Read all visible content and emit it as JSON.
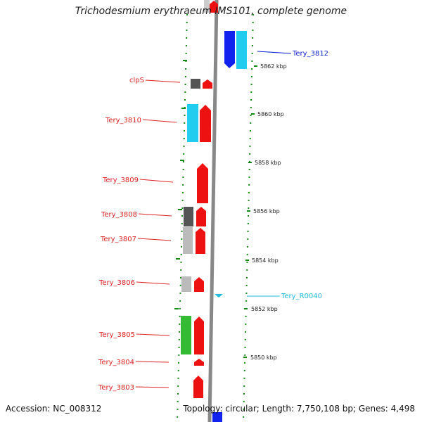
{
  "title": "Trichodesmium erythraeum IMS101, complete genome",
  "footer": {
    "accession": "Accession: NC_008312",
    "summary": "Topology: circular; Length: 7,750,108 bp; Genes: 4,498"
  },
  "colors": {
    "forward_gene": "#ee1111",
    "reverse_gene": "#1122ee",
    "cyan_feature": "#22ccee",
    "green_feature": "#33bb33",
    "dark_gray_feature": "#555555",
    "light_gray_feature": "#bbbbbb",
    "backbone": "#888888",
    "tick_green": "#118811"
  },
  "ticks": [
    {
      "label": "5862 kbp"
    },
    {
      "label": "5860 kbp"
    },
    {
      "label": "5858 kbp"
    },
    {
      "label": "5856 kbp"
    },
    {
      "label": "5854 kbp"
    },
    {
      "label": "5852 kbp"
    },
    {
      "label": "5850 kbp"
    }
  ],
  "left_labels": [
    {
      "name": "clpS"
    },
    {
      "name": "Tery_3810"
    },
    {
      "name": "Tery_3809"
    },
    {
      "name": "Tery_3808"
    },
    {
      "name": "Tery_3807"
    },
    {
      "name": "Tery_3806"
    },
    {
      "name": "Tery_3805"
    },
    {
      "name": "Tery_3804"
    },
    {
      "name": "Tery_3803"
    }
  ],
  "right_labels": [
    {
      "name": "Tery_3812",
      "color": "#1122cc"
    },
    {
      "name": "Tery_R0040",
      "color": "#22bbdd"
    }
  ]
}
